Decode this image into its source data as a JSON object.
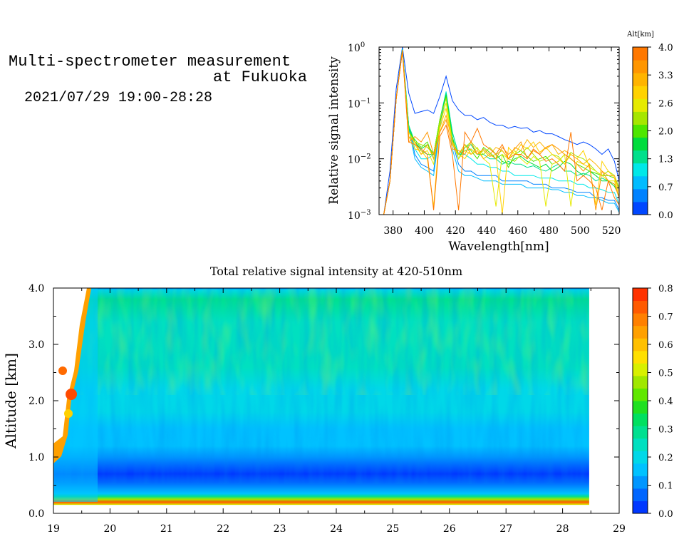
{
  "header": {
    "title_line1": "Multi-spectrometer measurement",
    "title_line2": "at Fukuoka",
    "datetime": "2021/07/29 19:00-28:28"
  },
  "chart_data": [
    {
      "type": "line",
      "xlabel": "Wavelength[nm]",
      "ylabel": "Relative signal intensity",
      "xlim": [
        371,
        525
      ],
      "ylim": [
        0.001,
        1
      ],
      "yscale": "log",
      "x_ticks": [
        380,
        400,
        420,
        440,
        460,
        480,
        500,
        520
      ],
      "y_ticks": [
        {
          "value": 1,
          "base": "10",
          "exp": "0"
        },
        {
          "value": 0.1,
          "base": "10",
          "exp": "−1"
        },
        {
          "value": 0.01,
          "base": "10",
          "exp": "−2"
        },
        {
          "value": 0.001,
          "base": "10",
          "exp": "−3"
        }
      ],
      "x": [
        374,
        378,
        382,
        386,
        390,
        394,
        398,
        402,
        406,
        410,
        414,
        418,
        422,
        426,
        430,
        434,
        438,
        442,
        446,
        450,
        454,
        458,
        462,
        466,
        470,
        474,
        478,
        482,
        486,
        490,
        494,
        498,
        502,
        506,
        510,
        514,
        518,
        522,
        525
      ],
      "series": [
        {
          "alt": 0.0,
          "values": [
            0.001,
            0.006,
            0.18,
            1.0,
            0.15,
            0.065,
            0.07,
            0.075,
            0.065,
            0.13,
            0.3,
            0.11,
            0.075,
            0.06,
            0.06,
            0.05,
            0.055,
            0.045,
            0.04,
            0.04,
            0.035,
            0.038,
            0.035,
            0.036,
            0.03,
            0.032,
            0.028,
            0.028,
            0.025,
            0.022,
            0.02,
            0.018,
            0.02,
            0.018,
            0.015,
            0.012,
            0.015,
            0.009,
            0.004
          ]
        },
        {
          "alt": 0.35,
          "values": [
            0.001,
            0.004,
            0.12,
            0.92,
            0.04,
            0.012,
            0.008,
            0.007,
            0.006,
            0.04,
            0.15,
            0.02,
            0.008,
            0.006,
            0.006,
            0.005,
            0.005,
            0.005,
            0.005,
            0.004,
            0.004,
            0.004,
            0.004,
            0.004,
            0.0035,
            0.0035,
            0.0035,
            0.003,
            0.003,
            0.003,
            0.0028,
            0.0025,
            0.0025,
            0.0025,
            0.002,
            0.002,
            0.0018,
            0.0018,
            0.0012
          ]
        },
        {
          "alt": 0.65,
          "values": [
            0.001,
            0.004,
            0.12,
            0.9,
            0.035,
            0.01,
            0.007,
            0.006,
            0.005,
            0.035,
            0.14,
            0.015,
            0.006,
            0.005,
            0.005,
            0.0045,
            0.004,
            0.004,
            0.004,
            0.0035,
            0.0035,
            0.0035,
            0.0035,
            0.003,
            0.003,
            0.003,
            0.003,
            0.0028,
            0.0028,
            0.0025,
            0.0025,
            0.0022,
            0.0022,
            0.002,
            0.002,
            0.0018,
            0.0016,
            0.0016,
            0.0011
          ]
        },
        {
          "alt": 1.0,
          "values": [
            0.001,
            0.004,
            0.12,
            0.92,
            0.04,
            0.015,
            0.01,
            0.01,
            0.012,
            0.05,
            0.16,
            0.03,
            0.012,
            0.012,
            0.01,
            0.008,
            0.008,
            0.007,
            0.007,
            0.006,
            0.006,
            0.005,
            0.005,
            0.005,
            0.005,
            0.0045,
            0.0045,
            0.0045,
            0.004,
            0.004,
            0.004,
            0.0035,
            0.0035,
            0.003,
            0.003,
            0.0028,
            0.0025,
            0.0025,
            0.0015
          ]
        },
        {
          "alt": 1.3,
          "values": [
            0.001,
            0.004,
            0.12,
            0.9,
            0.04,
            0.02,
            0.014,
            0.012,
            0.012,
            0.05,
            0.15,
            0.03,
            0.012,
            0.014,
            0.015,
            0.012,
            0.012,
            0.01,
            0.01,
            0.008,
            0.009,
            0.008,
            0.008,
            0.007,
            0.0075,
            0.0065,
            0.006,
            0.007,
            0.008,
            0.006,
            0.006,
            0.005,
            0.0055,
            0.005,
            0.004,
            0.0045,
            0.004,
            0.0035,
            0.002
          ]
        },
        {
          "alt": 1.65,
          "values": [
            0.001,
            0.004,
            0.12,
            0.9,
            0.035,
            0.02,
            0.015,
            0.018,
            0.012,
            0.05,
            0.14,
            0.025,
            0.01,
            0.016,
            0.018,
            0.012,
            0.014,
            0.011,
            0.012,
            0.009,
            0.008,
            0.01,
            0.011,
            0.009,
            0.008,
            0.007,
            0.008,
            0.006,
            0.007,
            0.009,
            0.008,
            0.006,
            0.005,
            0.006,
            0.005,
            0.004,
            0.004,
            0.0032,
            0.0022
          ]
        },
        {
          "alt": 2.0,
          "values": [
            0.001,
            0.004,
            0.12,
            0.88,
            0.03,
            0.022,
            0.016,
            0.02,
            0.01,
            0.045,
            0.13,
            0.022,
            0.012,
            0.018,
            0.014,
            0.01,
            0.016,
            0.013,
            0.01,
            0.012,
            0.007,
            0.012,
            0.014,
            0.011,
            0.009,
            0.01,
            0.011,
            0.008,
            0.009,
            0.012,
            0.01,
            0.008,
            0.007,
            0.006,
            0.0055,
            0.005,
            0.005,
            0.0045,
            0.003
          ]
        },
        {
          "alt": 2.3,
          "values": [
            0.001,
            0.004,
            0.12,
            0.88,
            0.03,
            0.02,
            0.018,
            0.016,
            0.012,
            0.05,
            0.12,
            0.02,
            0.012,
            0.016,
            0.02,
            0.015,
            0.012,
            0.016,
            0.012,
            0.014,
            0.01,
            0.009,
            0.012,
            0.016,
            0.012,
            0.009,
            0.01,
            0.012,
            0.011,
            0.008,
            0.013,
            0.011,
            0.01,
            0.008,
            0.006,
            0.005,
            0.006,
            0.005,
            0.003
          ]
        },
        {
          "alt": 2.65,
          "values": [
            0.001,
            0.004,
            0.12,
            0.88,
            0.03,
            0.018,
            0.012,
            0.014,
            0.008,
            0.04,
            0.1,
            0.02,
            0.01,
            0.014,
            0.012,
            0.016,
            0.01,
            0.008,
            0.0014,
            0.012,
            0.01,
            0.014,
            0.01,
            0.008,
            0.011,
            0.009,
            0.0014,
            0.008,
            0.009,
            0.012,
            0.0014,
            0.009,
            0.008,
            0.007,
            0.006,
            0.005,
            0.004,
            0.004,
            0.002
          ]
        },
        {
          "alt": 3.0,
          "values": [
            0.001,
            0.004,
            0.12,
            0.86,
            0.025,
            0.015,
            0.014,
            0.01,
            0.0014,
            0.035,
            0.08,
            0.018,
            0.012,
            0.01,
            0.015,
            0.012,
            0.014,
            0.011,
            0.012,
            0.001,
            0.016,
            0.012,
            0.018,
            0.015,
            0.02,
            0.013,
            0.016,
            0.012,
            0.01,
            0.008,
            0.012,
            0.01,
            0.014,
            0.007,
            0.0015,
            0.009,
            0.006,
            0.0045,
            0.002
          ]
        },
        {
          "alt": 3.3,
          "values": [
            0.001,
            0.004,
            0.12,
            0.86,
            0.025,
            0.02,
            0.012,
            0.018,
            0.01,
            0.03,
            0.06,
            0.02,
            0.012,
            0.018,
            0.012,
            0.014,
            0.01,
            0.012,
            0.016,
            0.014,
            0.01,
            0.016,
            0.014,
            0.022,
            0.016,
            0.02,
            0.015,
            0.018,
            0.012,
            0.014,
            0.012,
            0.01,
            0.008,
            0.01,
            0.008,
            0.006,
            0.005,
            0.005,
            0.0025
          ]
        },
        {
          "alt": 3.65,
          "values": [
            0.001,
            0.004,
            0.12,
            0.85,
            0.02,
            0.025,
            0.02,
            0.03,
            0.012,
            0.03,
            0.05,
            0.015,
            0.014,
            0.012,
            0.02,
            0.012,
            0.015,
            0.012,
            0.01,
            0.016,
            0.012,
            0.015,
            0.02,
            0.01,
            0.014,
            0.012,
            0.016,
            0.018,
            0.015,
            0.012,
            0.01,
            0.008,
            0.006,
            0.008,
            0.0012,
            0.006,
            0.004,
            0.0035,
            0.002
          ]
        },
        {
          "alt": 3.95,
          "values": [
            0.001,
            0.004,
            0.12,
            0.85,
            0.02,
            0.018,
            0.015,
            0.012,
            0.0012,
            0.025,
            0.04,
            0.012,
            0.0012,
            0.03,
            0.02,
            0.035,
            0.018,
            0.015,
            0.012,
            0.018,
            0.01,
            0.012,
            0.012,
            0.01,
            0.015,
            0.012,
            0.009,
            0.01,
            0.008,
            0.006,
            0.03,
            0.004,
            0.005,
            0.004,
            0.003,
            0.0012,
            0.004,
            0.002,
            0.0015
          ]
        }
      ],
      "colorbar": {
        "label": "Alt[km]",
        "tick_labels": [
          "4.0",
          "3.3",
          "2.6",
          "2.0",
          "1.3",
          "0.7",
          "0.0"
        ],
        "colors": [
          "#0047ff",
          "#0082ff",
          "#00bcff",
          "#00e8e8",
          "#00e08c",
          "#00dc3c",
          "#4ee600",
          "#a6e600",
          "#e6ea00",
          "#ffd200",
          "#ffb400",
          "#ff9600",
          "#ff7800"
        ]
      }
    },
    {
      "type": "heatmap",
      "title": "Total relative signal intensity at 420-510nm",
      "ylabel": "Altitude [km]",
      "xlim": [
        19,
        29
      ],
      "ylim": [
        0,
        4
      ],
      "x_ticks": [
        "19",
        "20",
        "21",
        "22",
        "23",
        "24",
        "25",
        "26",
        "27",
        "28",
        "29"
      ],
      "y_ticks": [
        "0.0",
        "1.0",
        "2.0",
        "3.0",
        "4.0"
      ],
      "data_x_end": 28.47,
      "altitude_profile": [
        {
          "alt": 0.15,
          "value": 0.5
        },
        {
          "alt": 0.2,
          "value": 0.75
        },
        {
          "alt": 0.25,
          "value": 0.45
        },
        {
          "alt": 0.3,
          "value": 0.28
        },
        {
          "alt": 0.35,
          "value": 0.15
        },
        {
          "alt": 0.45,
          "value": 0.1
        },
        {
          "alt": 0.55,
          "value": 0.06
        },
        {
          "alt": 0.7,
          "value": 0.03
        },
        {
          "alt": 0.85,
          "value": 0.06
        },
        {
          "alt": 1.0,
          "value": 0.1
        },
        {
          "alt": 1.2,
          "value": 0.14
        },
        {
          "alt": 1.5,
          "value": 0.17
        },
        {
          "alt": 1.8,
          "value": 0.19
        },
        {
          "alt": 2.2,
          "value": 0.21
        },
        {
          "alt": 2.6,
          "value": 0.24
        },
        {
          "alt": 3.0,
          "value": 0.24
        },
        {
          "alt": 3.4,
          "value": 0.26
        },
        {
          "alt": 3.8,
          "value": 0.28
        },
        {
          "alt": 3.97,
          "value": 0.22
        },
        {
          "alt": 4.0,
          "value": 0.05
        }
      ],
      "colorbar": {
        "tick_labels": [
          "0.8",
          "0.7",
          "0.6",
          "0.5",
          "0.4",
          "0.3",
          "0.2",
          "0.1",
          "0.0"
        ],
        "colors": [
          "#0038ff",
          "#0066ff",
          "#0096ff",
          "#00c2ff",
          "#00d8e8",
          "#00e0c0",
          "#00e090",
          "#00e060",
          "#20e020",
          "#60e800",
          "#a0e800",
          "#d8f000",
          "#ffe000",
          "#ffc000",
          "#ffa000",
          "#ff8000",
          "#ff5a00",
          "#ff3200"
        ]
      }
    }
  ]
}
